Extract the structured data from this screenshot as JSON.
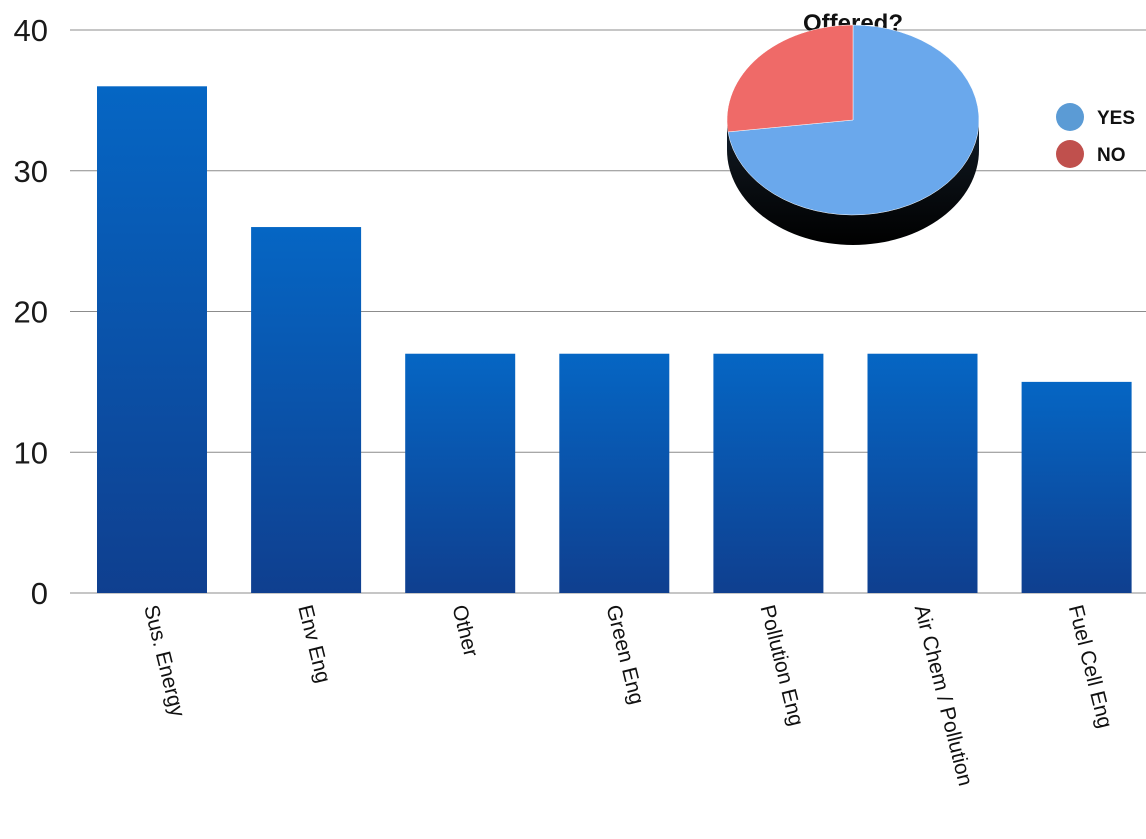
{
  "chart_data": [
    {
      "type": "bar",
      "title": "",
      "xlabel": "",
      "ylabel": "",
      "categories": [
        "Sus. Energy",
        "Env Eng",
        "Other",
        "Green Eng",
        "Pollution Eng",
        "Air Chem / Pollution",
        "Fuel Cell Eng"
      ],
      "values": [
        36,
        26,
        17,
        17,
        17,
        17,
        15
      ],
      "ylim": [
        0,
        40
      ],
      "yticks": [
        "0",
        "10",
        "20",
        "30",
        "40"
      ],
      "grid": true,
      "colors": {
        "bar_top": "#0566c4",
        "bar_bottom": "#0f3f8f",
        "grid": "#8c8c8c"
      }
    },
    {
      "type": "pie",
      "title": "Offered?",
      "labels": [
        "YES",
        "NO"
      ],
      "values": [
        73,
        27
      ],
      "legend_position": "right",
      "colors": [
        "#5b9bd5",
        "#c0504d"
      ],
      "slice_colors": [
        "#6aa8ec",
        "#ef6a68"
      ]
    }
  ]
}
